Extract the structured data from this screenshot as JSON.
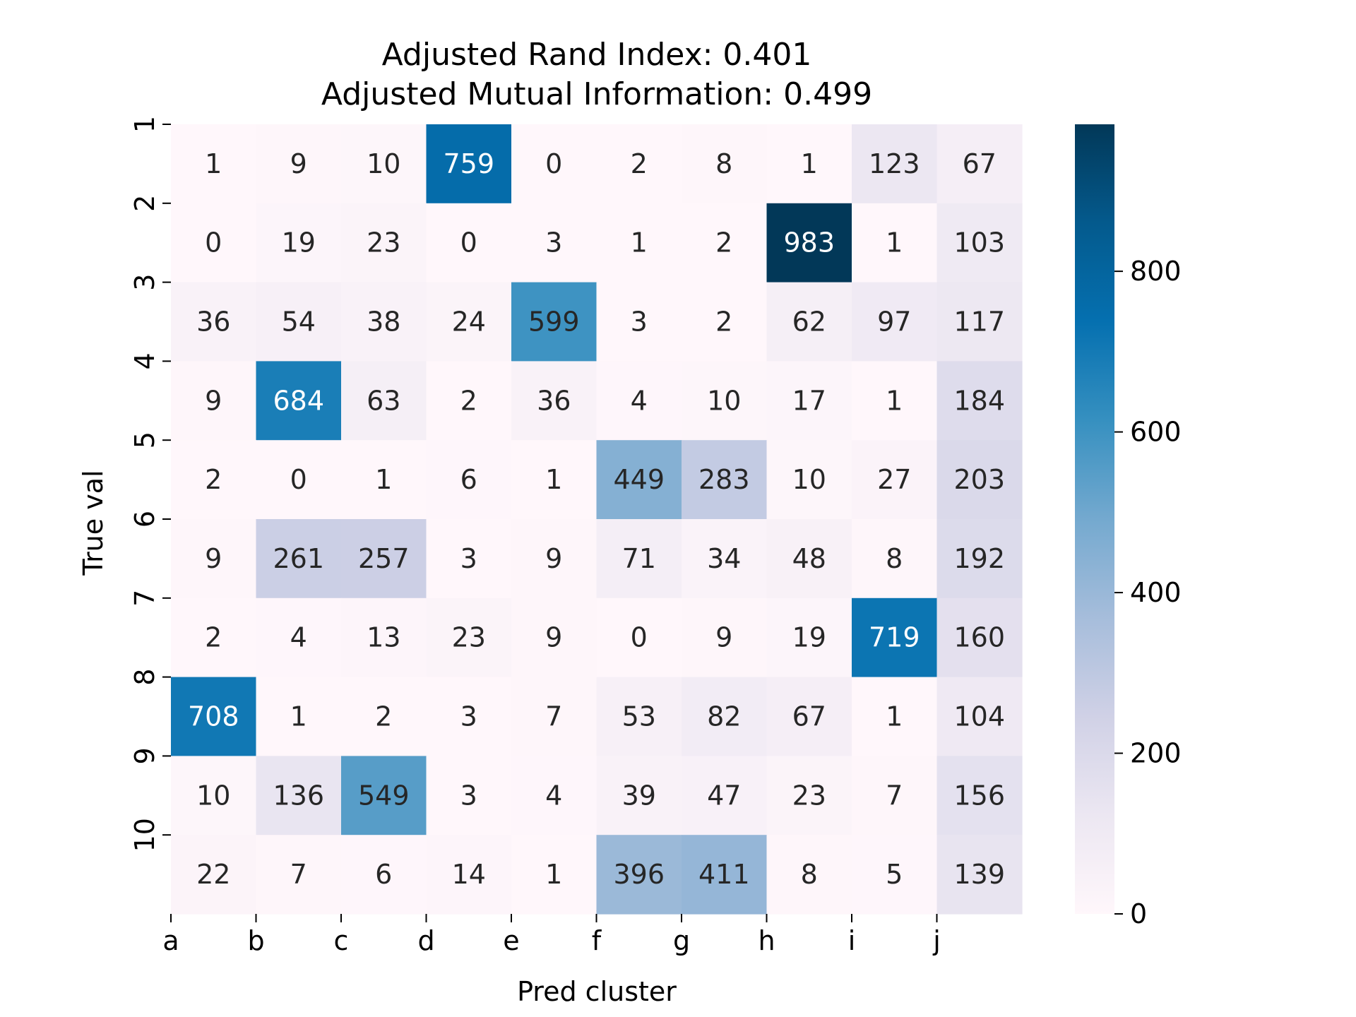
{
  "chart_data": {
    "type": "heatmap",
    "title": [
      "Adjusted Rand Index: 0.401",
      "Adjusted Mutual Information: 0.499"
    ],
    "xlabel": "Pred cluster",
    "ylabel": "True val",
    "x_categories": [
      "a",
      "b",
      "c",
      "d",
      "e",
      "f",
      "g",
      "h",
      "i",
      "j"
    ],
    "y_categories": [
      "1",
      "2",
      "3",
      "4",
      "5",
      "6",
      "7",
      "8",
      "9",
      "10"
    ],
    "values": [
      [
        1,
        9,
        10,
        759,
        0,
        2,
        8,
        1,
        123,
        67
      ],
      [
        0,
        19,
        23,
        0,
        3,
        1,
        2,
        983,
        1,
        103
      ],
      [
        36,
        54,
        38,
        24,
        599,
        3,
        2,
        62,
        97,
        117
      ],
      [
        9,
        684,
        63,
        2,
        36,
        4,
        10,
        17,
        1,
        184
      ],
      [
        2,
        0,
        1,
        6,
        1,
        449,
        283,
        10,
        27,
        203
      ],
      [
        9,
        261,
        257,
        3,
        9,
        71,
        34,
        48,
        8,
        192
      ],
      [
        2,
        4,
        13,
        23,
        9,
        0,
        9,
        19,
        719,
        160
      ],
      [
        708,
        1,
        2,
        3,
        7,
        53,
        82,
        67,
        1,
        104
      ],
      [
        10,
        136,
        549,
        3,
        4,
        39,
        47,
        23,
        7,
        156
      ],
      [
        22,
        7,
        6,
        14,
        1,
        396,
        411,
        8,
        5,
        139
      ]
    ],
    "colorbar": {
      "range": [
        0,
        983
      ],
      "ticks": [
        0,
        200,
        400,
        600,
        800
      ],
      "colormap": "PuBu",
      "color_stops": [
        "#fff7fb",
        "#ece7f2",
        "#d0d1e6",
        "#a6bddb",
        "#74a9cf",
        "#3690c0",
        "#0570b0",
        "#045a8d",
        "#023858"
      ]
    }
  }
}
